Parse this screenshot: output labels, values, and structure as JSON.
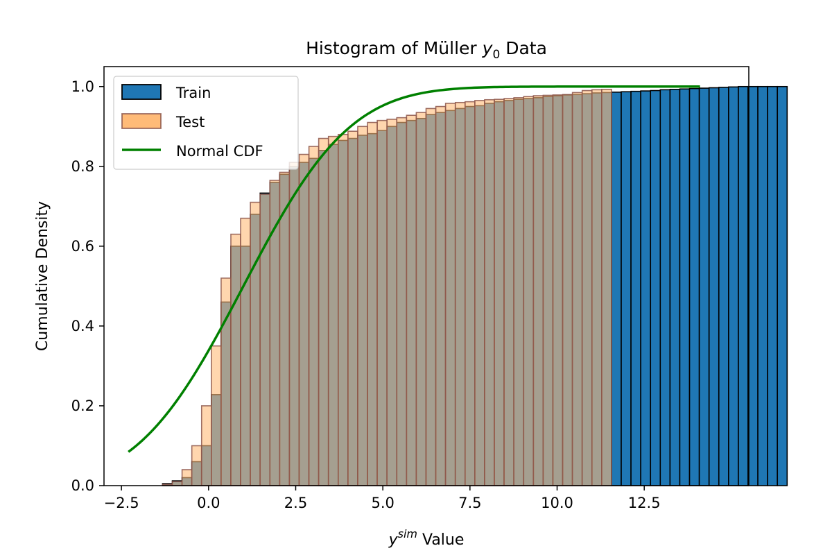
{
  "chart_data": {
    "type": "histogram",
    "title": "Histogram of Müller y0 Data",
    "title_parts": {
      "before": "Histogram of Müller ",
      "var": "y",
      "sub": "0",
      "after": " Data"
    },
    "xlabel": "ysim Value",
    "xlabel_parts": {
      "var": "y",
      "sup": "sim",
      "after": " Value"
    },
    "ylabel": "Cumulative Density",
    "xlim": [
      -3.0,
      15.5
    ],
    "ylim": [
      0,
      1.05
    ],
    "xticks": [
      -2.5,
      0.0,
      2.5,
      5.0,
      7.5,
      10.0,
      12.5
    ],
    "xtick_labels": [
      "−2.5",
      "0.0",
      "2.5",
      "5.0",
      "7.5",
      "10.0",
      "12.5"
    ],
    "yticks": [
      0.0,
      0.2,
      0.4,
      0.6,
      0.8,
      1.0
    ],
    "ytick_labels": [
      "0.0",
      "0.2",
      "0.4",
      "0.6",
      "0.8",
      "1.0"
    ],
    "grid": false,
    "legend_position": "top-left",
    "legend": [
      "Train",
      "Test",
      "Normal CDF"
    ],
    "series": [
      {
        "name": "Train",
        "kind": "cumulative-histogram",
        "color": "#1f77b4",
        "edgecolor": "#000000",
        "bin_start": -1.6,
        "bin_width": 0.28,
        "cum_values": [
          0.0,
          0.005,
          0.012,
          0.02,
          0.06,
          0.1,
          0.228,
          0.46,
          0.6,
          0.6,
          0.68,
          0.733,
          0.76,
          0.78,
          0.8,
          0.81,
          0.82,
          0.84,
          0.855,
          0.865,
          0.87,
          0.878,
          0.882,
          0.89,
          0.9,
          0.91,
          0.915,
          0.92,
          0.93,
          0.935,
          0.94,
          0.945,
          0.95,
          0.952,
          0.958,
          0.962,
          0.965,
          0.968,
          0.97,
          0.972,
          0.975,
          0.977,
          0.979,
          0.98,
          0.982,
          0.984,
          0.985,
          0.986,
          0.987,
          0.988,
          0.989,
          0.99,
          0.992,
          0.993,
          0.994,
          0.995,
          0.996,
          0.997,
          0.998,
          0.999,
          1.0,
          1.0,
          1.0,
          1.0,
          1.0
        ]
      },
      {
        "name": "Test",
        "kind": "cumulative-histogram",
        "color": "#ffbb78",
        "edgecolor": "#8c564b",
        "bin_start": -1.6,
        "bin_width": 0.28,
        "cum_values": [
          0.0,
          0.003,
          0.01,
          0.04,
          0.1,
          0.2,
          0.35,
          0.52,
          0.63,
          0.67,
          0.71,
          0.73,
          0.765,
          0.785,
          0.81,
          0.83,
          0.85,
          0.87,
          0.875,
          0.88,
          0.888,
          0.9,
          0.91,
          0.915,
          0.918,
          0.922,
          0.928,
          0.935,
          0.945,
          0.95,
          0.958,
          0.96,
          0.962,
          0.965,
          0.967,
          0.968,
          0.97,
          0.972,
          0.975,
          0.977,
          0.978,
          0.979,
          0.98,
          0.985,
          0.99,
          0.992,
          0.993
        ]
      },
      {
        "name": "Normal CDF",
        "kind": "line",
        "color": "#008000",
        "mean": 1.0,
        "std": 2.4,
        "x_range": [
          -2.3,
          14.1
        ]
      }
    ]
  }
}
